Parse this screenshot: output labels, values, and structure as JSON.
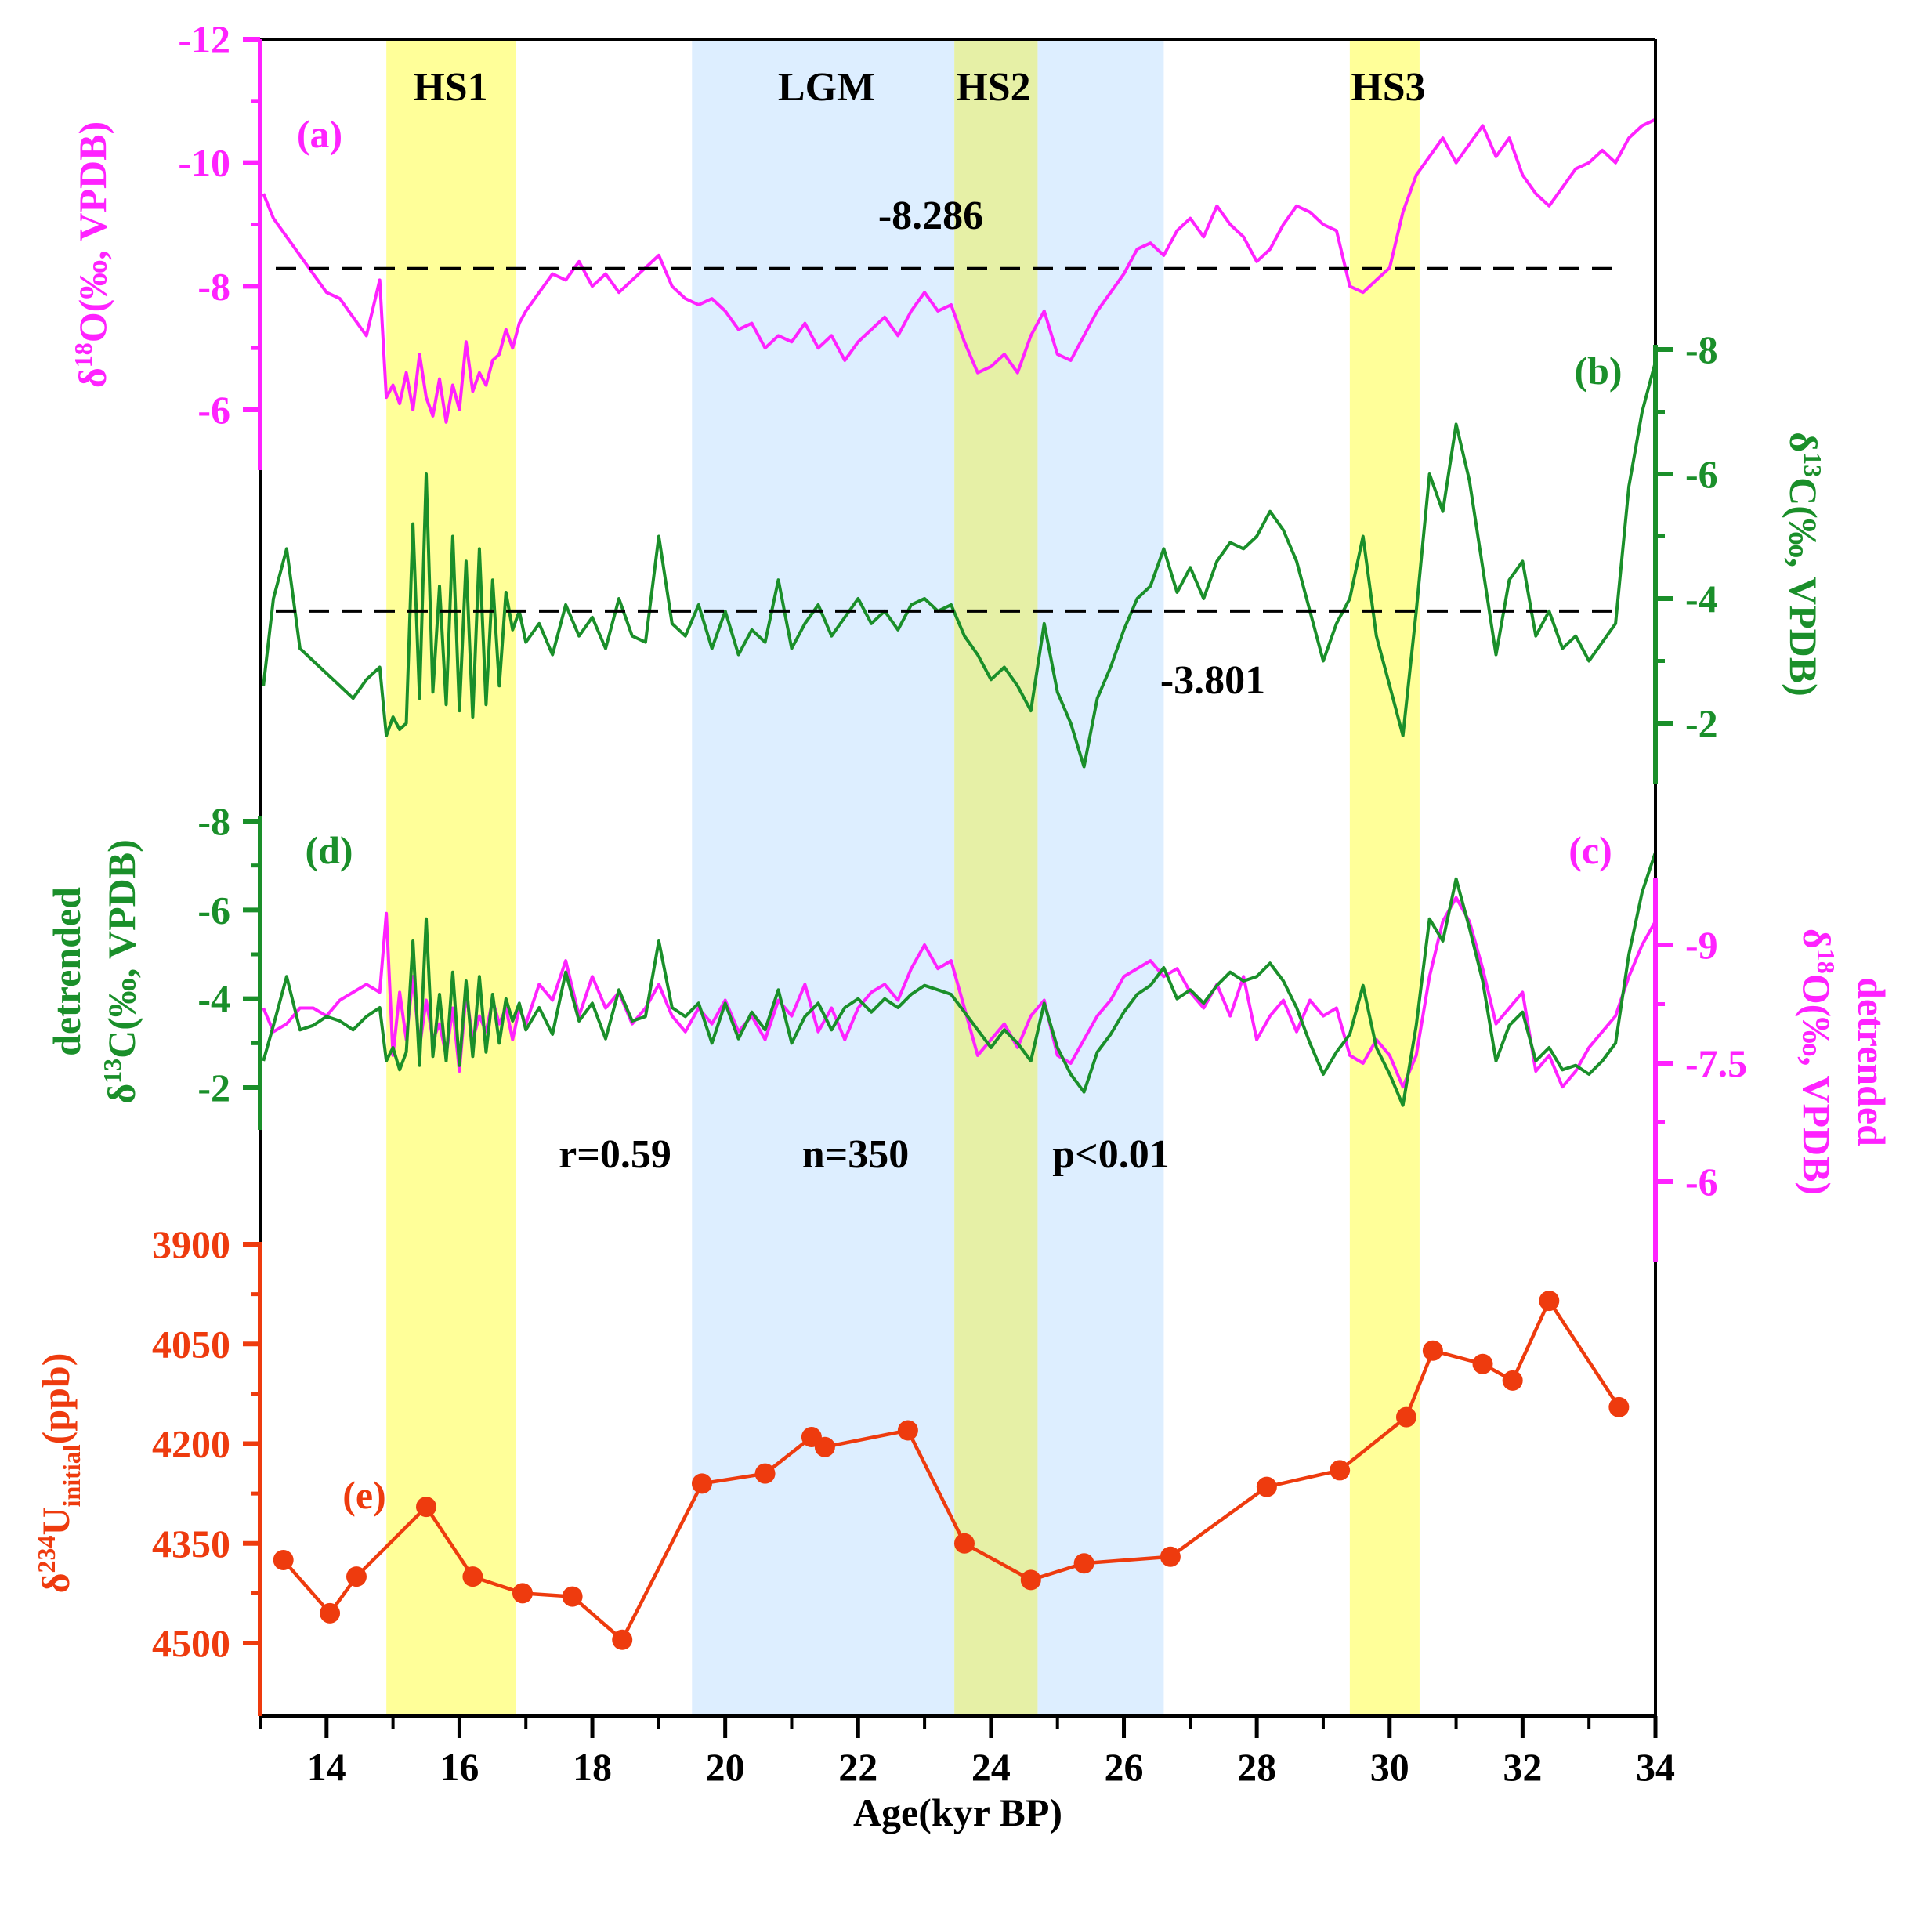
{
  "colors": {
    "magenta": "#ff22ff",
    "green": "#1a8f2a",
    "red": "#ee3b0e",
    "black": "#000000",
    "yellow_band": "#ffff99",
    "blue_band": "#ddeeff",
    "overlap_band": "#e6f0a6"
  },
  "chart_data": {
    "type": "line",
    "xlabel": "Age(kyr BP)",
    "xlim": [
      13,
      34
    ],
    "xticks": [
      14,
      16,
      18,
      20,
      22,
      24,
      26,
      28,
      30,
      32,
      34
    ],
    "grid": false,
    "bands": [
      {
        "label": "HS1",
        "x0": 14.9,
        "x1": 16.85,
        "kind": "yellow"
      },
      {
        "label": "LGM",
        "x0": 19.5,
        "x1": 26.6,
        "kind": "blue"
      },
      {
        "label": "HS2",
        "x0": 23.45,
        "x1": 24.7,
        "kind": "yellow"
      },
      {
        "label": "HS3",
        "x0": 29.4,
        "x1": 30.45,
        "kind": "yellow"
      }
    ],
    "panels": [
      {
        "id": "a",
        "label": "(a)",
        "color": "magenta",
        "ylabel": "δ18O(‰, VPDB)",
        "ylabel_main": "δ",
        "ylabel_sup": "18",
        "ylabel_rest": "O(‰, VPDB)",
        "yticks": [
          -12,
          -10,
          -8,
          -6
        ],
        "ylim": [
          -12,
          -5
        ],
        "reversed": true,
        "mean_line": -8.286,
        "mean_label": "-8.286",
        "x": [
          13.05,
          13.2,
          13.4,
          13.6,
          13.8,
          14.0,
          14.2,
          14.4,
          14.6,
          14.8,
          14.9,
          15.0,
          15.1,
          15.2,
          15.3,
          15.4,
          15.5,
          15.6,
          15.7,
          15.8,
          15.9,
          16.0,
          16.1,
          16.2,
          16.3,
          16.4,
          16.5,
          16.6,
          16.7,
          16.8,
          16.9,
          17.0,
          17.2,
          17.4,
          17.6,
          17.8,
          18.0,
          18.2,
          18.4,
          18.6,
          18.8,
          19.0,
          19.2,
          19.4,
          19.6,
          19.8,
          20.0,
          20.2,
          20.4,
          20.6,
          20.8,
          21.0,
          21.2,
          21.4,
          21.6,
          21.8,
          22.0,
          22.2,
          22.4,
          22.6,
          22.8,
          23.0,
          23.2,
          23.4,
          23.6,
          23.8,
          24.0,
          24.2,
          24.4,
          24.6,
          24.8,
          25.0,
          25.2,
          25.4,
          25.6,
          25.8,
          26.0,
          26.2,
          26.4,
          26.6,
          26.8,
          27.0,
          27.2,
          27.4,
          27.6,
          27.8,
          28.0,
          28.2,
          28.4,
          28.6,
          28.8,
          29.0,
          29.2,
          29.4,
          29.6,
          29.8,
          30.0,
          30.2,
          30.4,
          30.6,
          30.8,
          31.0,
          31.2,
          31.4,
          31.6,
          31.8,
          32.0,
          32.2,
          32.4,
          32.6,
          32.8,
          33.0,
          33.2,
          33.4,
          33.6,
          33.8,
          34.0
        ],
        "y": [
          -9.5,
          -9.1,
          -8.8,
          -8.5,
          -8.2,
          -7.9,
          -7.8,
          -7.5,
          -7.2,
          -8.1,
          -6.2,
          -6.4,
          -6.1,
          -6.6,
          -6.0,
          -6.9,
          -6.2,
          -5.9,
          -6.5,
          -5.8,
          -6.4,
          -6.0,
          -7.1,
          -6.3,
          -6.6,
          -6.4,
          -6.8,
          -6.9,
          -7.3,
          -7.0,
          -7.4,
          -7.6,
          -7.9,
          -8.2,
          -8.1,
          -8.4,
          -8.0,
          -8.2,
          -7.9,
          -8.1,
          -8.3,
          -8.5,
          -8.0,
          -7.8,
          -7.7,
          -7.8,
          -7.6,
          -7.3,
          -7.4,
          -7.0,
          -7.2,
          -7.1,
          -7.4,
          -7.0,
          -7.2,
          -6.8,
          -7.1,
          -7.3,
          -7.5,
          -7.2,
          -7.6,
          -7.9,
          -7.6,
          -7.7,
          -7.1,
          -6.6,
          -6.7,
          -6.9,
          -6.6,
          -7.2,
          -7.6,
          -6.9,
          -6.8,
          -7.2,
          -7.6,
          -7.9,
          -8.2,
          -8.6,
          -8.7,
          -8.5,
          -8.9,
          -9.1,
          -8.8,
          -9.3,
          -9.0,
          -8.8,
          -8.4,
          -8.6,
          -9.0,
          -9.3,
          -9.2,
          -9.0,
          -8.9,
          -8.0,
          -7.9,
          -8.1,
          -8.3,
          -9.2,
          -9.8,
          -10.1,
          -10.4,
          -10.0,
          -10.3,
          -10.6,
          -10.1,
          -10.4,
          -9.8,
          -9.5,
          -9.3,
          -9.6,
          -9.9,
          -10.0,
          -10.2,
          -10.0,
          -10.4,
          -10.6,
          -10.7
        ]
      },
      {
        "id": "b",
        "label": "(b)",
        "color": "green",
        "ylabel": "δ13C(‰, VPDB)",
        "ylabel_main": "δ",
        "ylabel_sup": "13",
        "ylabel_rest": "C(‰, VPDB)",
        "yticks": [
          -8,
          -6,
          -4,
          -2
        ],
        "ylim": [
          -8,
          -1
        ],
        "reversed": true,
        "mean_line": -3.801,
        "mean_label": "-3.801",
        "x": [
          13.05,
          13.2,
          13.4,
          13.6,
          13.8,
          14.0,
          14.2,
          14.4,
          14.6,
          14.8,
          14.9,
          15.0,
          15.1,
          15.2,
          15.3,
          15.4,
          15.5,
          15.6,
          15.7,
          15.8,
          15.9,
          16.0,
          16.1,
          16.2,
          16.3,
          16.4,
          16.5,
          16.6,
          16.7,
          16.8,
          16.9,
          17.0,
          17.2,
          17.4,
          17.6,
          17.8,
          18.0,
          18.2,
          18.4,
          18.6,
          18.8,
          19.0,
          19.2,
          19.4,
          19.6,
          19.8,
          20.0,
          20.2,
          20.4,
          20.6,
          20.8,
          21.0,
          21.2,
          21.4,
          21.6,
          21.8,
          22.0,
          22.2,
          22.4,
          22.6,
          22.8,
          23.0,
          23.2,
          23.4,
          23.6,
          23.8,
          24.0,
          24.2,
          24.4,
          24.6,
          24.8,
          25.0,
          25.2,
          25.4,
          25.6,
          25.8,
          26.0,
          26.2,
          26.4,
          26.6,
          26.8,
          27.0,
          27.2,
          27.4,
          27.6,
          27.8,
          28.0,
          28.2,
          28.4,
          28.6,
          28.8,
          29.0,
          29.2,
          29.4,
          29.6,
          29.8,
          30.0,
          30.2,
          30.4,
          30.6,
          30.8,
          31.0,
          31.2,
          31.4,
          31.6,
          31.8,
          32.0,
          32.2,
          32.4,
          32.6,
          32.8,
          33.0,
          33.2,
          33.4,
          33.6,
          33.8,
          34.0
        ],
        "y": [
          -2.6,
          -4.0,
          -4.8,
          -3.2,
          -3.0,
          -2.8,
          -2.6,
          -2.4,
          -2.7,
          -2.9,
          -1.8,
          -2.1,
          -1.9,
          -2.0,
          -5.2,
          -2.4,
          -6.0,
          -2.5,
          -4.2,
          -2.3,
          -5.0,
          -2.2,
          -4.6,
          -2.1,
          -4.8,
          -2.3,
          -4.3,
          -2.6,
          -4.1,
          -3.5,
          -3.8,
          -3.3,
          -3.6,
          -3.1,
          -3.9,
          -3.4,
          -3.7,
          -3.2,
          -4.0,
          -3.4,
          -3.3,
          -5.0,
          -3.6,
          -3.4,
          -3.9,
          -3.2,
          -3.8,
          -3.1,
          -3.5,
          -3.3,
          -4.3,
          -3.2,
          -3.6,
          -3.9,
          -3.4,
          -3.7,
          -4.0,
          -3.6,
          -3.8,
          -3.5,
          -3.9,
          -4.0,
          -3.8,
          -3.9,
          -3.4,
          -3.1,
          -2.7,
          -2.9,
          -2.6,
          -2.2,
          -3.6,
          -2.5,
          -2.0,
          -1.3,
          -2.4,
          -2.9,
          -3.5,
          -4.0,
          -4.2,
          -4.8,
          -4.1,
          -4.5,
          -4.0,
          -4.6,
          -4.9,
          -4.8,
          -5.0,
          -5.4,
          -5.1,
          -4.6,
          -3.8,
          -3.0,
          -3.6,
          -4.0,
          -5.0,
          -3.4,
          -2.6,
          -1.8,
          -3.8,
          -6.0,
          -5.4,
          -6.8,
          -5.9,
          -4.5,
          -3.1,
          -4.3,
          -4.6,
          -3.4,
          -3.8,
          -3.2,
          -3.4,
          -3.0,
          -3.3,
          -3.6,
          -5.8,
          -7.0,
          -7.8
        ]
      },
      {
        "id": "d",
        "label": "(d)",
        "color": "green",
        "ylabel_prefix": "detrended",
        "ylabel": "δ13C(‰, VPDB)",
        "ylabel_main": "δ",
        "ylabel_sup": "13",
        "ylabel_rest": "C(‰, VPDB)",
        "yticks": [
          -8,
          -6,
          -4,
          -2
        ],
        "ylim": [
          -8,
          -1
        ],
        "reversed": true,
        "x": [
          13.05,
          13.2,
          13.4,
          13.6,
          13.8,
          14.0,
          14.2,
          14.4,
          14.6,
          14.8,
          14.9,
          15.0,
          15.1,
          15.2,
          15.3,
          15.4,
          15.5,
          15.6,
          15.7,
          15.8,
          15.9,
          16.0,
          16.1,
          16.2,
          16.3,
          16.4,
          16.5,
          16.6,
          16.7,
          16.8,
          16.9,
          17.0,
          17.2,
          17.4,
          17.6,
          17.8,
          18.0,
          18.2,
          18.4,
          18.6,
          18.8,
          19.0,
          19.2,
          19.4,
          19.6,
          19.8,
          20.0,
          20.2,
          20.4,
          20.6,
          20.8,
          21.0,
          21.2,
          21.4,
          21.6,
          21.8,
          22.0,
          22.2,
          22.4,
          22.6,
          22.8,
          23.0,
          23.2,
          23.4,
          23.6,
          23.8,
          24.0,
          24.2,
          24.4,
          24.6,
          24.8,
          25.0,
          25.2,
          25.4,
          25.6,
          25.8,
          26.0,
          26.2,
          26.4,
          26.6,
          26.8,
          27.0,
          27.2,
          27.4,
          27.6,
          27.8,
          28.0,
          28.2,
          28.4,
          28.6,
          28.8,
          29.0,
          29.2,
          29.4,
          29.6,
          29.8,
          30.0,
          30.2,
          30.4,
          30.6,
          30.8,
          31.0,
          31.2,
          31.4,
          31.6,
          31.8,
          32.0,
          32.2,
          32.4,
          32.6,
          32.8,
          33.0,
          33.2,
          33.4,
          33.6,
          33.8,
          34.0
        ],
        "y": [
          -2.6,
          -3.4,
          -4.5,
          -3.3,
          -3.4,
          -3.6,
          -3.5,
          -3.3,
          -3.6,
          -3.8,
          -2.6,
          -2.9,
          -2.4,
          -2.8,
          -5.3,
          -2.5,
          -5.8,
          -2.7,
          -4.1,
          -2.6,
          -4.6,
          -2.5,
          -4.4,
          -2.7,
          -4.5,
          -2.8,
          -4.1,
          -3.0,
          -4.0,
          -3.5,
          -3.9,
          -3.3,
          -3.8,
          -3.2,
          -4.6,
          -3.5,
          -3.9,
          -3.1,
          -4.2,
          -3.5,
          -3.6,
          -5.3,
          -3.8,
          -3.6,
          -3.9,
          -3.0,
          -3.9,
          -3.1,
          -3.7,
          -3.3,
          -4.2,
          -3.0,
          -3.6,
          -3.9,
          -3.3,
          -3.8,
          -4.0,
          -3.7,
          -4.0,
          -3.8,
          -4.1,
          -4.3,
          -4.2,
          -4.1,
          -3.7,
          -3.3,
          -2.9,
          -3.3,
          -3.0,
          -2.6,
          -3.9,
          -2.9,
          -2.3,
          -1.9,
          -2.8,
          -3.2,
          -3.7,
          -4.1,
          -4.3,
          -4.7,
          -4.0,
          -4.2,
          -3.9,
          -4.3,
          -4.6,
          -4.4,
          -4.5,
          -4.8,
          -4.4,
          -3.8,
          -3.0,
          -2.3,
          -2.8,
          -3.2,
          -4.3,
          -2.9,
          -2.3,
          -1.6,
          -3.4,
          -5.8,
          -5.3,
          -6.7,
          -5.6,
          -4.4,
          -2.6,
          -3.4,
          -3.7,
          -2.6,
          -2.9,
          -2.4,
          -2.5,
          -2.3,
          -2.6,
          -3.0,
          -5.0,
          -6.4,
          -7.3
        ]
      },
      {
        "id": "c",
        "label": "(c)",
        "color": "magenta",
        "ylabel_prefix": "detrended",
        "ylabel": "δ18O(‰, VPDB)",
        "ylabel_main": "δ",
        "ylabel_sup": "18",
        "ylabel_rest": "O(‰, VPDB)",
        "yticks": [
          -9,
          -7.5,
          -6
        ],
        "ylim": [
          -10.9,
          -5.15
        ],
        "reversed": true,
        "x": [
          13.05,
          13.2,
          13.4,
          13.6,
          13.8,
          14.0,
          14.2,
          14.4,
          14.6,
          14.8,
          14.9,
          15.0,
          15.1,
          15.2,
          15.3,
          15.4,
          15.5,
          15.6,
          15.7,
          15.8,
          15.9,
          16.0,
          16.1,
          16.2,
          16.3,
          16.4,
          16.5,
          16.6,
          16.7,
          16.8,
          16.9,
          17.0,
          17.2,
          17.4,
          17.6,
          17.8,
          18.0,
          18.2,
          18.4,
          18.6,
          18.8,
          19.0,
          19.2,
          19.4,
          19.6,
          19.8,
          20.0,
          20.2,
          20.4,
          20.6,
          20.8,
          21.0,
          21.2,
          21.4,
          21.6,
          21.8,
          22.0,
          22.2,
          22.4,
          22.6,
          22.8,
          23.0,
          23.2,
          23.4,
          23.6,
          23.8,
          24.0,
          24.2,
          24.4,
          24.6,
          24.8,
          25.0,
          25.2,
          25.4,
          25.6,
          25.8,
          26.0,
          26.2,
          26.4,
          26.6,
          26.8,
          27.0,
          27.2,
          27.4,
          27.6,
          27.8,
          28.0,
          28.2,
          28.4,
          28.6,
          28.8,
          29.0,
          29.2,
          29.4,
          29.6,
          29.8,
          30.0,
          30.2,
          30.4,
          30.6,
          30.8,
          31.0,
          31.2,
          31.4,
          31.6,
          31.8,
          32.0,
          32.2,
          32.4,
          32.6,
          32.8,
          33.0,
          33.2,
          33.4,
          33.6,
          33.8,
          34.0
        ],
        "y": [
          -8.2,
          -7.9,
          -8.0,
          -8.2,
          -8.2,
          -8.1,
          -8.3,
          -8.4,
          -8.5,
          -8.4,
          -9.4,
          -7.6,
          -8.4,
          -7.8,
          -8.6,
          -7.7,
          -8.3,
          -7.8,
          -8.0,
          -7.6,
          -8.2,
          -7.4,
          -8.4,
          -7.8,
          -8.1,
          -7.9,
          -8.3,
          -8.0,
          -8.2,
          -7.8,
          -8.2,
          -8.0,
          -8.5,
          -8.3,
          -8.8,
          -8.1,
          -8.6,
          -8.2,
          -8.4,
          -8.0,
          -8.2,
          -8.5,
          -8.1,
          -7.9,
          -8.2,
          -8.0,
          -8.3,
          -7.9,
          -8.1,
          -7.8,
          -8.3,
          -8.1,
          -8.5,
          -7.9,
          -8.2,
          -7.8,
          -8.2,
          -8.4,
          -8.5,
          -8.3,
          -8.7,
          -9.0,
          -8.7,
          -8.8,
          -8.2,
          -7.6,
          -7.8,
          -8.0,
          -7.7,
          -8.1,
          -8.3,
          -7.6,
          -7.5,
          -7.8,
          -8.1,
          -8.3,
          -8.6,
          -8.7,
          -8.8,
          -8.6,
          -8.7,
          -8.4,
          -8.2,
          -8.5,
          -8.1,
          -8.6,
          -7.8,
          -8.1,
          -8.3,
          -7.9,
          -8.3,
          -8.1,
          -8.2,
          -7.6,
          -7.5,
          -7.8,
          -7.6,
          -7.2,
          -7.6,
          -8.6,
          -9.3,
          -9.6,
          -9.3,
          -8.7,
          -8.0,
          -8.2,
          -8.4,
          -7.4,
          -7.6,
          -7.2,
          -7.4,
          -7.7,
          -7.9,
          -8.1,
          -8.6,
          -9.0,
          -9.3
        ]
      },
      {
        "id": "e",
        "label": "(e)",
        "color": "red",
        "ylabel": "δ234Uinitial(ppb)",
        "ylabel_main": "δ",
        "ylabel_sup": "234",
        "ylabel_mid": "U",
        "ylabel_sub": "initial",
        "ylabel_rest": "(ppb)",
        "yticks": [
          3900,
          4050,
          4200,
          4350,
          4500
        ],
        "ylim": [
          3900,
          4500
        ],
        "reversed": false,
        "markers": true,
        "x": [
          13.35,
          14.05,
          14.45,
          15.5,
          16.2,
          16.95,
          17.7,
          18.45,
          19.65,
          20.6,
          21.3,
          21.5,
          22.75,
          23.6,
          24.6,
          25.4,
          26.7,
          28.15,
          29.25,
          30.25,
          30.65,
          31.4,
          31.85,
          32.4,
          33.45
        ],
        "y": [
          4375,
          4455,
          4400,
          4295,
          4400,
          4425,
          4430,
          4495,
          4260,
          4245,
          4190,
          4205,
          4180,
          4350,
          4405,
          4380,
          4370,
          4265,
          4240,
          4160,
          4060,
          4080,
          4105,
          3985,
          4145
        ]
      }
    ],
    "annotations": [
      {
        "id": "r",
        "text": "r=0.59"
      },
      {
        "id": "n",
        "text": "n=350"
      },
      {
        "id": "p",
        "text": "p<0.01"
      }
    ]
  }
}
